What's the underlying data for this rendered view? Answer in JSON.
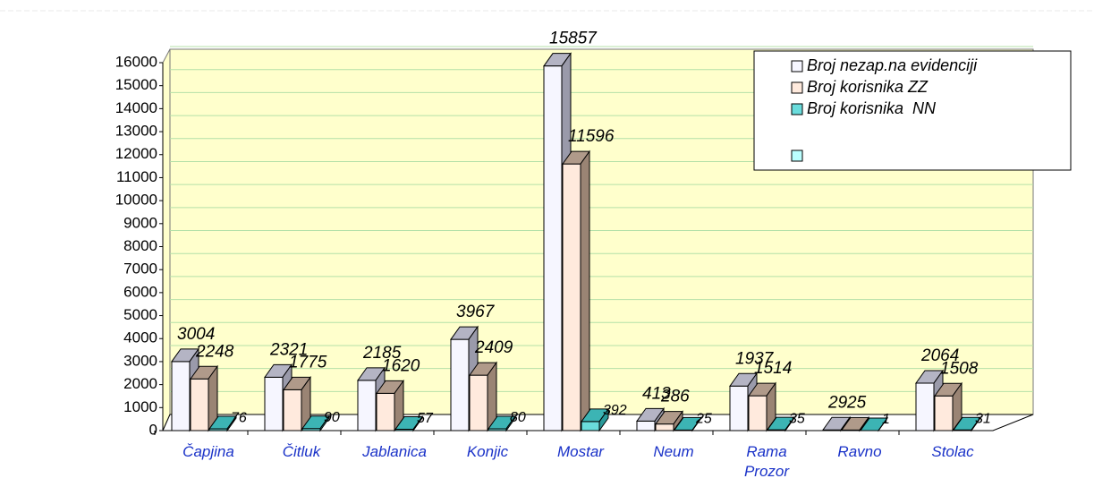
{
  "chart_data": {
    "type": "bar3d",
    "categories": [
      "Čapjina",
      "Čitluk",
      "Jablanica",
      "Konjic",
      "Mostar",
      "Neum",
      "Rama Prozor",
      "Ravno",
      "Stolac"
    ],
    "series": [
      {
        "name": "Broj nezap.na evidenciji",
        "color": "#f6f6ff",
        "values": [
          3004,
          2321,
          2185,
          3967,
          15857,
          413,
          1937,
          29,
          2064
        ]
      },
      {
        "name": "Broj korisnika ZZ",
        "color": "#ffeadd",
        "values": [
          2248,
          1775,
          1620,
          2409,
          11596,
          286,
          1514,
          25,
          1508
        ]
      },
      {
        "name": "Broj korisnika  NN",
        "color": "#6adcdc",
        "values": [
          76,
          90,
          57,
          80,
          392,
          25,
          35,
          1,
          31
        ]
      }
    ],
    "ylim": [
      0,
      16000
    ],
    "yticks": [
      0,
      1000,
      2000,
      3000,
      4000,
      5000,
      6000,
      7000,
      8000,
      9000,
      10000,
      11000,
      12000,
      13000,
      14000,
      15000,
      16000
    ],
    "grid": true,
    "legend": "top-right"
  }
}
